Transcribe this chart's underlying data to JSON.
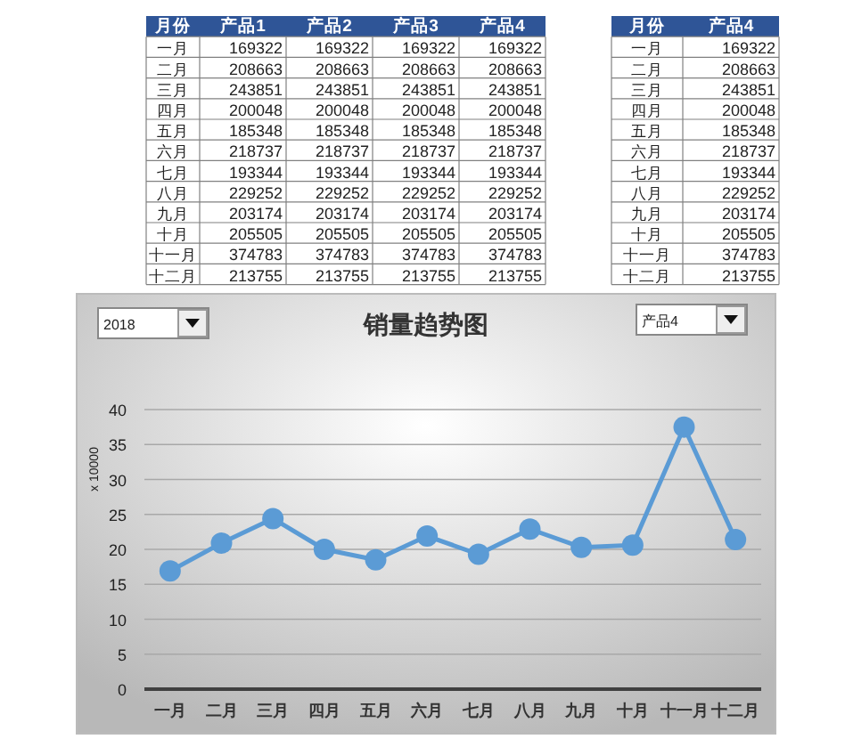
{
  "chart_data": [
    {
      "type": "heatmap",
      "ylabel": "月份",
      "categories": [
        "产品1",
        "产品2",
        "产品3",
        "产品4"
      ],
      "y_categories": [
        "一月",
        "二月",
        "三月",
        "四月",
        "五月",
        "六月",
        "七月",
        "八月",
        "九月",
        "十月",
        "十一月",
        "十二月"
      ],
      "grid": true,
      "cells": [
        [
          169322,
          169322,
          169322,
          169322
        ],
        [
          208663,
          208663,
          208663,
          208663
        ],
        [
          243851,
          243851,
          243851,
          243851
        ],
        [
          200048,
          200048,
          200048,
          200048
        ],
        [
          185348,
          185348,
          185348,
          185348
        ],
        [
          218737,
          218737,
          218737,
          218737
        ],
        [
          193344,
          193344,
          193344,
          193344
        ],
        [
          229252,
          229252,
          229252,
          229252
        ],
        [
          203174,
          203174,
          203174,
          203174
        ],
        [
          205505,
          205505,
          205505,
          205505
        ],
        [
          374783,
          374783,
          374783,
          374783
        ],
        [
          213755,
          213755,
          213755,
          213755
        ]
      ],
      "data_labels": true
    },
    {
      "type": "heatmap",
      "ylabel": "月份",
      "categories": [
        "产品4"
      ],
      "y_categories": [
        "一月",
        "二月",
        "三月",
        "四月",
        "五月",
        "六月",
        "七月",
        "八月",
        "九月",
        "十月",
        "十一月",
        "十二月"
      ],
      "grid": true,
      "cells": [
        [
          169322
        ],
        [
          208663
        ],
        [
          243851
        ],
        [
          200048
        ],
        [
          185348
        ],
        [
          218737
        ],
        [
          193344
        ],
        [
          229252
        ],
        [
          203174
        ],
        [
          205505
        ],
        [
          374783
        ],
        [
          213755
        ]
      ],
      "data_labels": true
    },
    {
      "type": "line",
      "title": "销量趋势图",
      "ylabel": "x 10000",
      "annotations": [
        "2018",
        "产品4"
      ],
      "categories": [
        "一月",
        "二月",
        "三月",
        "四月",
        "五月",
        "六月",
        "七月",
        "八月",
        "九月",
        "十月",
        "十一月",
        "十二月"
      ],
      "series": [
        {
          "color": "#5b9bd5",
          "values": [
            16.9,
            20.9,
            24.4,
            20.0,
            18.5,
            21.9,
            19.3,
            22.9,
            20.3,
            20.6,
            37.5,
            21.4
          ]
        }
      ],
      "ylim": [
        0,
        40
      ],
      "yticks": [
        0,
        5,
        10,
        15,
        20,
        25,
        30,
        35,
        40
      ],
      "grid": "y",
      "marker": "circle",
      "line_style": "solid"
    }
  ]
}
